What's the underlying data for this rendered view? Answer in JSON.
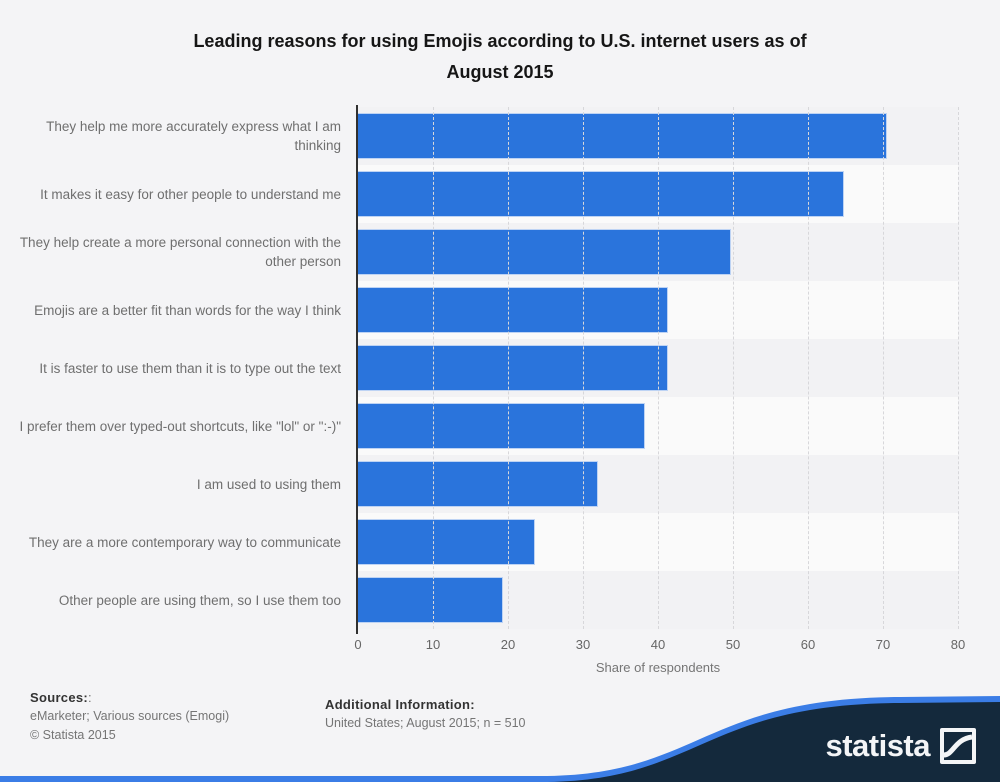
{
  "title": {
    "full": "Leading reasons for using Emojis according to U.S. internet users as of August 2015",
    "line1": "Leading reasons for using Emojis according to U.S. internet users as of",
    "line2": "August 2015"
  },
  "chart_data": {
    "type": "bar",
    "orientation": "horizontal",
    "title": "Leading reasons for using Emojis according to U.S. internet users as of August 2015",
    "categories": [
      "They help me more accurately express what I am thinking",
      "It makes it easy for other people to understand me",
      "They help create a more personal connection with the other person",
      "Emojis are a better fit than words for the way I think",
      "It is faster to use them than it is to type out the text",
      "I prefer them over typed-out shortcuts, like \"lol\" or \":-)\"",
      "I am used to using them",
      "They are a more contemporary way to communicate",
      "Other people are using them, so I use them too"
    ],
    "values": [
      70.5,
      64.8,
      49.7,
      41.3,
      41.3,
      38.3,
      32.0,
      23.6,
      19.3
    ],
    "unit": "% of respondents",
    "xlabel": "Share of respondents",
    "xlim": [
      0,
      80
    ],
    "xticks": [
      0,
      10,
      20,
      30,
      40,
      50,
      60,
      70,
      80
    ],
    "grid": "vertical-dashed",
    "legend": "none",
    "bar_color": "#2a74dc",
    "band_colors": [
      "#f2f2f4",
      "#fafafa"
    ]
  },
  "footer": {
    "sources_label": "Sources:",
    "sources_label_suffix": ":",
    "sources_text": "eMarketer; Various sources (Emogi)",
    "copyright": "© Statista 2015",
    "additional_label": "Additional Information:",
    "additional_text": "United States; August 2015; n = 510",
    "brand": "statista",
    "brand_navy": "#14293c",
    "brand_blue": "#3b7de6"
  }
}
